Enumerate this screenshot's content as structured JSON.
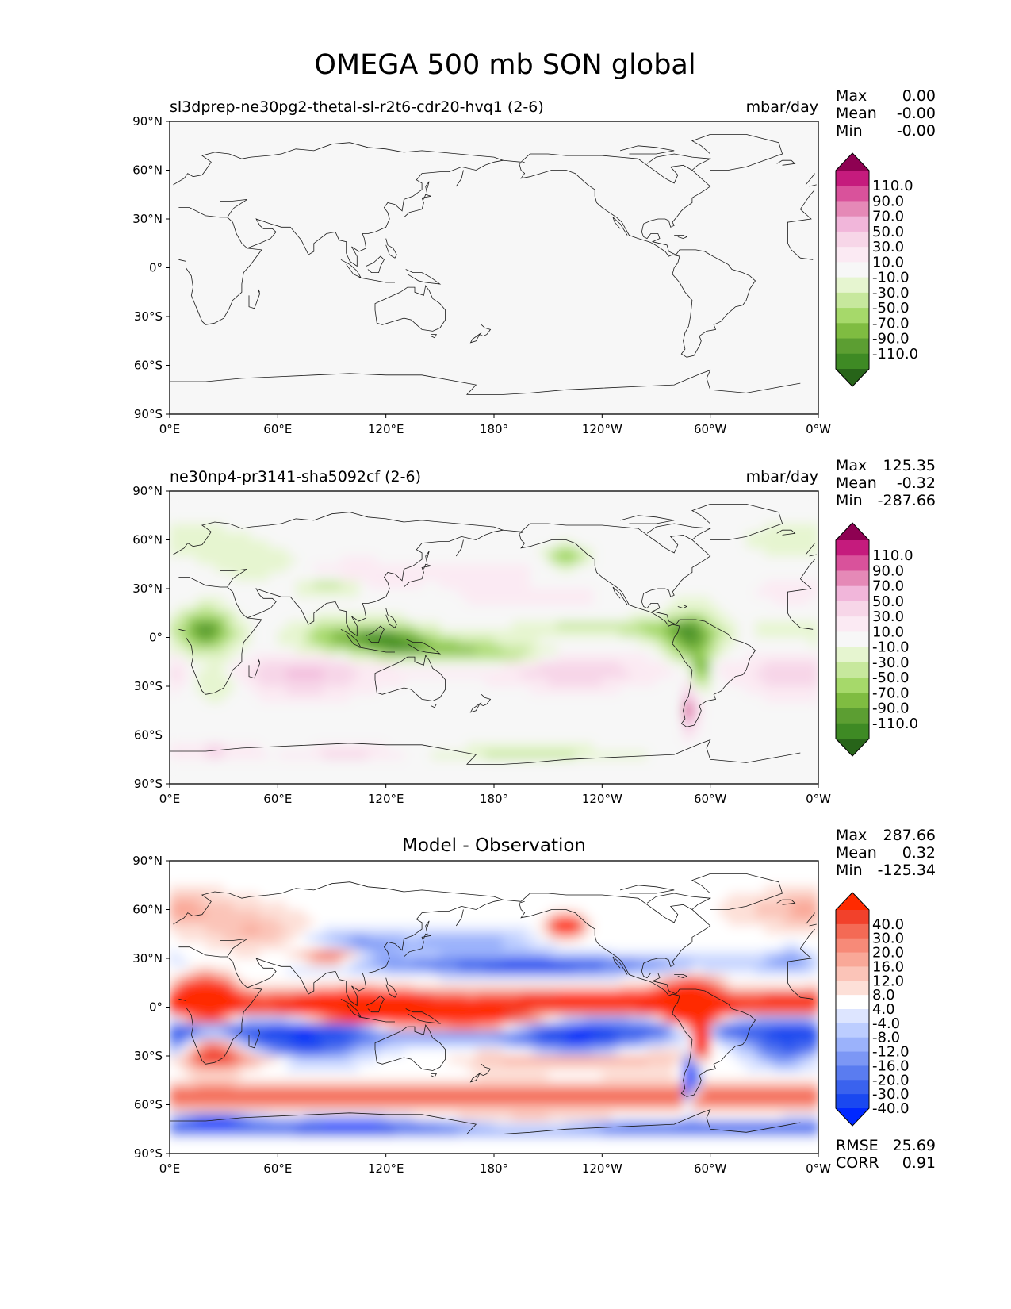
{
  "title": "OMEGA 500 mb SON global",
  "x_ticks": [
    "0°E",
    "60°E",
    "120°E",
    "180°",
    "120°W",
    "60°W",
    "0°W"
  ],
  "y_ticks": [
    "90°N",
    "60°N",
    "30°N",
    "0°",
    "30°S",
    "60°S",
    "90°S"
  ],
  "colors": {
    "ocean_bg": "#f7f7f7",
    "coast": "#1a1a1a"
  },
  "chart_data": [
    {
      "type": "heatmap",
      "panel": "test",
      "left_title": "sl3dprep-ne30pg2-thetal-sl-r2t6-cdr20-hvq1 (2-6)",
      "center_title": "",
      "right_title": "mbar/day",
      "stats": [
        {
          "label": "Max",
          "value": "0.00"
        },
        {
          "label": "Mean",
          "value": "-0.00"
        },
        {
          "label": "Min",
          "value": "-0.00"
        }
      ],
      "colorbar": {
        "labels": [
          "110.0",
          "90.0",
          "70.0",
          "50.0",
          "30.0",
          "10.0",
          "-10.0",
          "-30.0",
          "-50.0",
          "-70.0",
          "-90.0",
          "-110.0"
        ],
        "colors": [
          "#8e0152",
          "#c51b7d",
          "#d9529b",
          "#e589b7",
          "#f1b6da",
          "#f7d6e8",
          "#fbeaf3",
          "#f7f7f7",
          "#e6f5d0",
          "#c7e89d",
          "#a6d96a",
          "#7fbc41",
          "#5c9e32",
          "#3e8a24",
          "#276419"
        ]
      },
      "field": "zero"
    },
    {
      "type": "heatmap",
      "panel": "reference",
      "left_title": "ne30np4-pr3141-sha5092cf (2-6)",
      "center_title": "",
      "right_title": "mbar/day",
      "stats": [
        {
          "label": "Max",
          "value": "125.35"
        },
        {
          "label": "Mean",
          "value": "-0.32"
        },
        {
          "label": "Min",
          "value": "-287.66"
        }
      ],
      "colorbar": {
        "labels": [
          "110.0",
          "90.0",
          "70.0",
          "50.0",
          "30.0",
          "10.0",
          "-10.0",
          "-30.0",
          "-50.0",
          "-70.0",
          "-90.0",
          "-110.0"
        ],
        "colors": [
          "#8e0152",
          "#c51b7d",
          "#d9529b",
          "#e589b7",
          "#f1b6da",
          "#f7d6e8",
          "#fbeaf3",
          "#f7f7f7",
          "#e6f5d0",
          "#c7e89d",
          "#a6d96a",
          "#7fbc41",
          "#5c9e32",
          "#3e8a24",
          "#276419"
        ]
      },
      "field": "omega"
    },
    {
      "type": "heatmap",
      "panel": "difference",
      "left_title": "",
      "center_title": "Model - Observation",
      "right_title": "",
      "stats": [
        {
          "label": "Max",
          "value": "287.66"
        },
        {
          "label": "Mean",
          "value": "0.32"
        },
        {
          "label": "Min",
          "value": "-125.34"
        }
      ],
      "extra_stats": [
        {
          "label": "RMSE",
          "value": "25.69"
        },
        {
          "label": "CORR",
          "value": "0.91"
        }
      ],
      "colorbar": {
        "labels": [
          "40.0",
          "30.0",
          "20.0",
          "16.0",
          "12.0",
          "8.0",
          "4.0",
          "-4.0",
          "-8.0",
          "-12.0",
          "-16.0",
          "-20.0",
          "-30.0",
          "-40.0"
        ],
        "colors": [
          "#ff2a00",
          "#f2412b",
          "#f46a55",
          "#f78a78",
          "#f9a898",
          "#fbc4b8",
          "#fde0d8",
          "#ffffff",
          "#dde5ff",
          "#bccdff",
          "#9bb2fb",
          "#7c97f5",
          "#5a7cf0",
          "#3a62ee",
          "#1a48f0",
          "#0028ff"
        ]
      },
      "field": "diff"
    }
  ]
}
